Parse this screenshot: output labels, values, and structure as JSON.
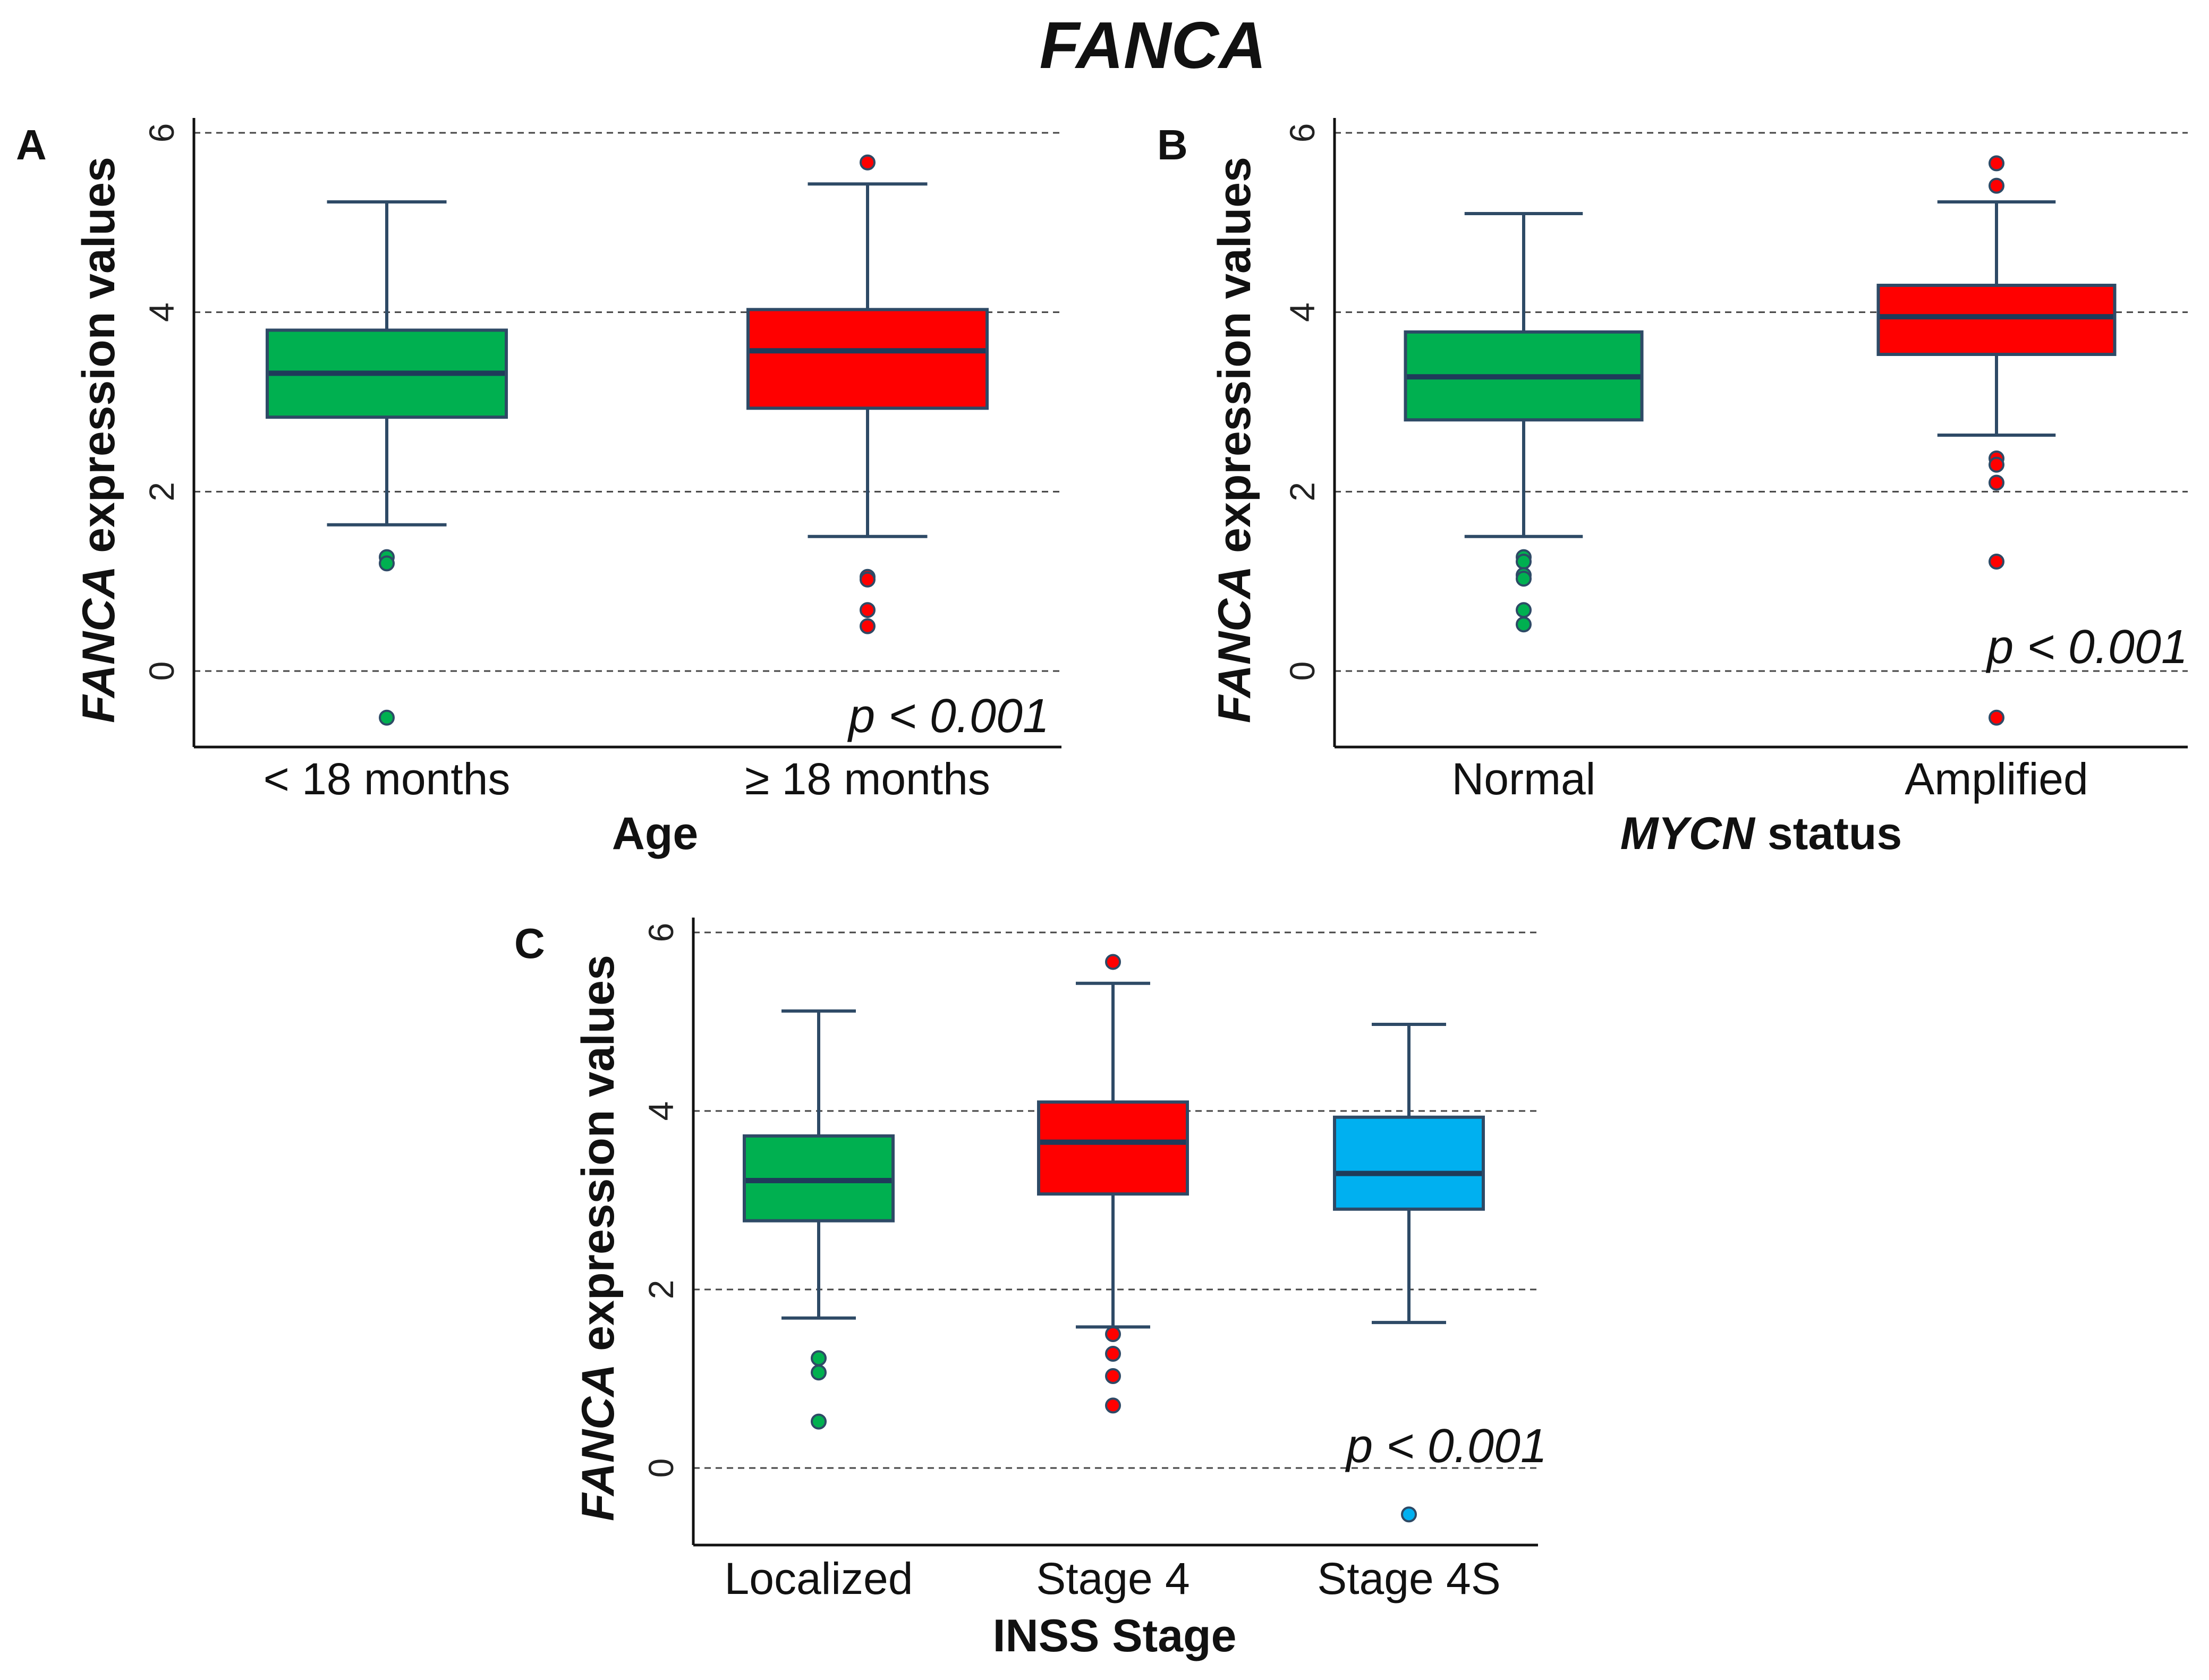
{
  "figure_title": "FANCA",
  "colors": {
    "green": "#00b050",
    "red": "#ff0000",
    "blue": "#00b0f0"
  },
  "chart_data": [
    {
      "id": "A",
      "type": "box",
      "panel_letter": "A",
      "ylabel_italic": "FANCA",
      "ylabel_rest": " expression values",
      "xlabel_italic": "",
      "xlabel_rest": "Age",
      "ylim": [
        -0.85,
        6.2
      ],
      "yticks": [
        "0",
        "2",
        "4",
        "6"
      ],
      "grid": "dashed horizontal at 0, 2, 4, 6",
      "p_value": "p < 0.001",
      "categories": [
        {
          "label": "< 18 months",
          "color": "green",
          "q1": 2.83,
          "median": 3.32,
          "q3": 3.8,
          "whisker_low": 1.63,
          "whisker_high": 5.23,
          "outliers": [
            1.27,
            1.2,
            -0.52
          ]
        },
        {
          "label": "≥ 18 months",
          "color": "red",
          "q1": 2.93,
          "median": 3.57,
          "q3": 4.03,
          "whisker_low": 1.5,
          "whisker_high": 5.43,
          "outliers": [
            5.67,
            1.05,
            1.02,
            0.68,
            0.5
          ]
        }
      ]
    },
    {
      "id": "B",
      "type": "box",
      "panel_letter": "B",
      "ylabel_italic": "FANCA",
      "ylabel_rest": " expression values",
      "xlabel_italic": "MYCN",
      "xlabel_rest": " status",
      "ylim": [
        -0.85,
        6.2
      ],
      "yticks": [
        "0",
        "2",
        "4",
        "6"
      ],
      "grid": "dashed horizontal at 0, 2, 4, 6",
      "p_value": "p < 0.001",
      "categories": [
        {
          "label": "Normal",
          "color": "green",
          "q1": 2.8,
          "median": 3.28,
          "q3": 3.78,
          "whisker_low": 1.5,
          "whisker_high": 5.1,
          "outliers": [
            1.27,
            1.22,
            1.07,
            1.03,
            0.68,
            0.52
          ]
        },
        {
          "label": "Amplified",
          "color": "red",
          "q1": 3.53,
          "median": 3.95,
          "q3": 4.3,
          "whisker_low": 2.63,
          "whisker_high": 5.23,
          "outliers": [
            5.66,
            5.41,
            2.37,
            2.3,
            2.1,
            1.22,
            -0.52
          ]
        }
      ]
    },
    {
      "id": "C",
      "type": "box",
      "panel_letter": "C",
      "ylabel_italic": "FANCA",
      "ylabel_rest": " expression values",
      "xlabel_italic": "",
      "xlabel_rest": "INSS Stage",
      "ylim": [
        -0.85,
        6.2
      ],
      "yticks": [
        "0",
        "2",
        "4",
        "6"
      ],
      "grid": "dashed horizontal at 0, 2, 4, 6",
      "p_value": "p < 0.001",
      "categories": [
        {
          "label": "Localized",
          "color": "green",
          "q1": 2.77,
          "median": 3.22,
          "q3": 3.72,
          "whisker_low": 1.68,
          "whisker_high": 5.12,
          "outliers": [
            1.23,
            1.07,
            0.52
          ]
        },
        {
          "label": "Stage 4",
          "color": "red",
          "q1": 3.07,
          "median": 3.65,
          "q3": 4.1,
          "whisker_low": 1.58,
          "whisker_high": 5.43,
          "outliers": [
            5.67,
            1.5,
            1.28,
            1.03,
            0.7
          ]
        },
        {
          "label": "Stage 4S",
          "color": "blue",
          "q1": 2.9,
          "median": 3.3,
          "q3": 3.93,
          "whisker_low": 1.63,
          "whisker_high": 4.97,
          "outliers": [
            -0.52
          ]
        }
      ]
    }
  ]
}
